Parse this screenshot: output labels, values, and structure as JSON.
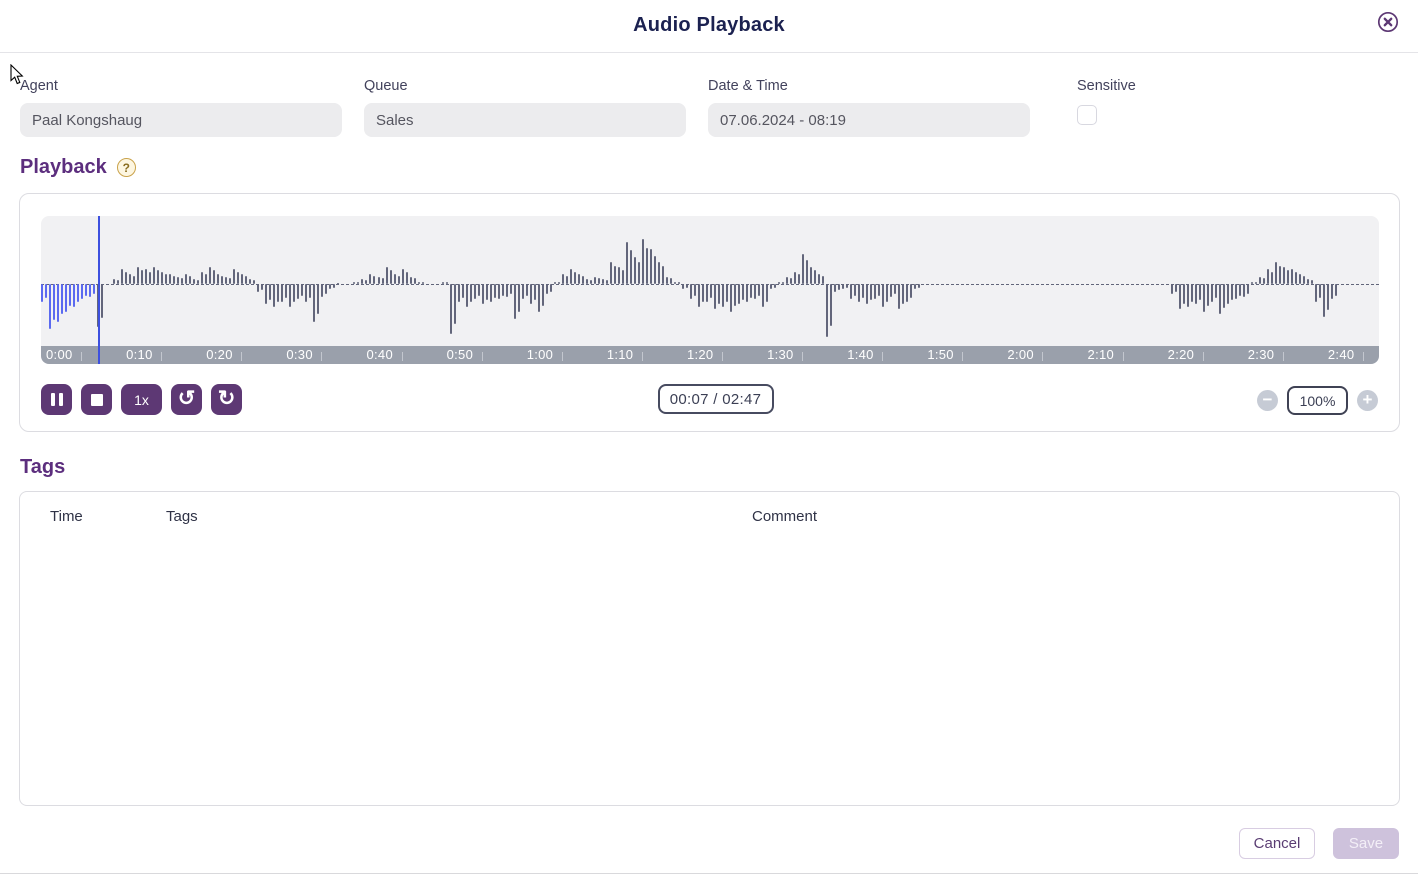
{
  "modal": {
    "title": "Audio Playback"
  },
  "theme": {
    "primary": "#5d3874",
    "heading": "#5c2e7e",
    "title": "#1b2150"
  },
  "fields": {
    "agent": {
      "label": "Agent",
      "value": "Paal Kongshaug"
    },
    "queue": {
      "label": "Queue",
      "value": "Sales"
    },
    "datetime": {
      "label": "Date & Time",
      "value": "07.06.2024 - 08:19"
    },
    "sensitive": {
      "label": "Sensitive",
      "checked": false
    }
  },
  "playback": {
    "heading": "Playback",
    "speed_label": "1x",
    "time_display": "00:07 / 02:47",
    "zoom_level": "100%",
    "duration_seconds": 167,
    "playhead_seconds": 7.1,
    "timeline_labels": [
      "0:00",
      "0:10",
      "0:20",
      "0:30",
      "0:40",
      "0:50",
      "1:00",
      "1:10",
      "1:20",
      "1:30",
      "1:40",
      "1:50",
      "2:00",
      "2:10",
      "2:20",
      "2:30",
      "2:40"
    ],
    "colors": {
      "played": "#5b6af0",
      "unplayed": "#63667b",
      "playhead": "#3d50df",
      "timeline_bg": "#9aa0ab",
      "wave_bg": "#f1f1f3"
    },
    "waveform": [
      -0.35,
      -0.9,
      -0.75,
      -0.55,
      -0.45,
      -0.3,
      -0.25,
      -0.85,
      0.02,
      0.1,
      0.3,
      0.2,
      0.35,
      0.3,
      0.35,
      0.25,
      0.2,
      0.15,
      0.2,
      0.1,
      0.25,
      0.35,
      0.2,
      0.15,
      0.3,
      0.2,
      0.1,
      -0.15,
      -0.4,
      -0.45,
      -0.35,
      -0.45,
      -0.3,
      -0.35,
      -0.75,
      -0.25,
      -0.1,
      0.03,
      0.02,
      0.05,
      0.1,
      0.2,
      0.15,
      0.35,
      0.2,
      0.3,
      0.15,
      0.05,
      0.02,
      0.02,
      0.05,
      -1.0,
      -0.35,
      -0.45,
      -0.3,
      -0.4,
      -0.35,
      -0.3,
      -0.25,
      -0.7,
      -0.3,
      -0.4,
      -0.55,
      -0.2,
      0.05,
      0.2,
      0.3,
      0.2,
      0.1,
      0.15,
      0.1,
      0.45,
      0.35,
      0.85,
      0.55,
      0.9,
      0.7,
      0.45,
      0.15,
      0.05,
      -0.1,
      -0.3,
      -0.45,
      -0.35,
      -0.5,
      -0.45,
      -0.55,
      -0.4,
      -0.35,
      -0.3,
      -0.45,
      -0.1,
      0.05,
      0.15,
      0.25,
      0.6,
      0.35,
      0.2,
      -1.05,
      -0.15,
      -0.1,
      -0.3,
      -0.35,
      -0.4,
      -0.3,
      -0.45,
      -0.25,
      -0.5,
      -0.35,
      -0.1,
      0.02,
      0.02,
      0.02,
      0.02,
      0.02,
      0.02,
      0.02,
      0.02,
      0.02,
      0.02,
      0.02,
      0.02,
      0.02,
      0.02,
      0.02,
      0.02,
      0.02,
      0.02,
      0.02,
      0.02,
      0.02,
      0.02,
      0.02,
      0.02,
      0.02,
      0.02,
      0.02,
      0.02,
      0.02,
      0.02,
      0.02,
      -0.2,
      -0.5,
      -0.45,
      -0.4,
      -0.55,
      -0.35,
      -0.6,
      -0.4,
      -0.3,
      -0.25,
      0.05,
      0.15,
      0.3,
      0.45,
      0.35,
      0.3,
      0.2,
      0.1,
      -0.35,
      -0.65,
      -0.3,
      0.02,
      0.02,
      0.02,
      0.02,
      0.02
    ]
  },
  "tags": {
    "heading": "Tags",
    "columns": [
      "Time",
      "Tags",
      "Comment"
    ],
    "rows": []
  },
  "footer": {
    "cancel_label": "Cancel",
    "save_label": "Save"
  },
  "icons": {
    "undo": "↺",
    "redo": "↻",
    "minus": "−",
    "plus": "+",
    "help": "?"
  }
}
